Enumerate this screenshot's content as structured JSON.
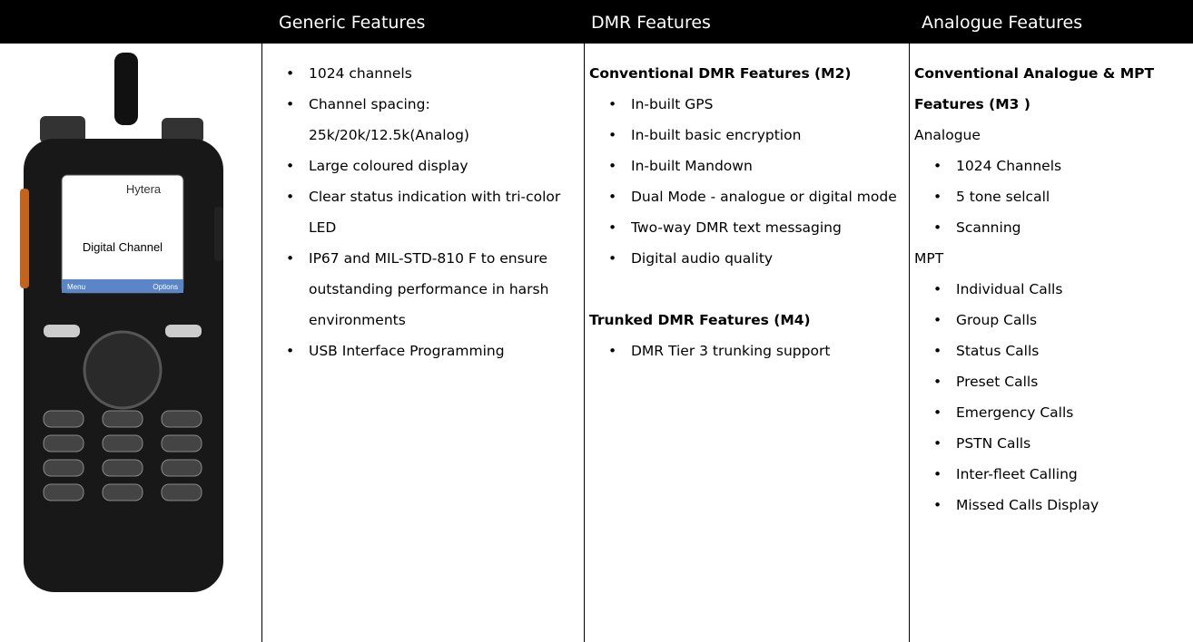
{
  "header": {
    "columns": [
      "Generic Features",
      "DMR Features",
      "Analogue Features"
    ]
  },
  "radio": {
    "brand": "Hytera",
    "screen": "Digital Channel",
    "left_key": "Menu",
    "right_key": "Options"
  },
  "generic": {
    "items": [
      "1024 channels",
      "Channel spacing: 25k/20k/12.5k(Analog)",
      "Large coloured display",
      "Clear status indication with tri-color LED",
      "IP67 and MIL-STD-810 F to ensure outstanding performance in harsh environments",
      "USB Interface Programming"
    ]
  },
  "dmr": {
    "sections": [
      {
        "heading": "Conventional DMR Features (M2)",
        "items": [
          "In-built GPS",
          "In-built basic encryption",
          "In-built Mandown",
          "Dual Mode - analogue or digital mode",
          "Two-way DMR text messaging",
          "Digital audio quality"
        ]
      },
      {
        "heading": "Trunked DMR Features (M4)",
        "items": [
          "DMR Tier 3 trunking support"
        ]
      }
    ]
  },
  "analogue": {
    "heading": "Conventional Analogue & MPT Features (M3 )",
    "groups": [
      {
        "label": "Analogue",
        "items": [
          "1024 Channels",
          "5 tone selcall",
          "Scanning"
        ]
      },
      {
        "label": "MPT",
        "items": [
          "Individual Calls",
          "Group Calls",
          "Status Calls",
          "Preset Calls",
          "Emergency Calls",
          "PSTN Calls",
          "Inter-fleet Calling",
          "Missed Calls Display"
        ]
      }
    ]
  }
}
